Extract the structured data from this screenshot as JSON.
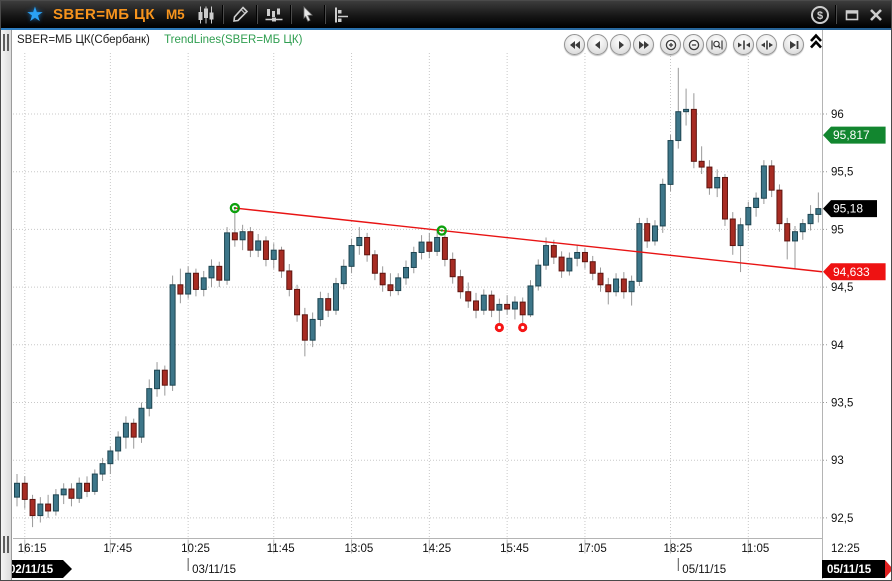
{
  "titlebar": {
    "symbol": "SBER=МБ ЦК",
    "interval": "M5",
    "accent_color": "#f7941d",
    "star_color": "#2ba2f5",
    "money_glyph": "$",
    "tool_icons": [
      "candlestick-style-icon",
      "draw-pencil-icon",
      "indicator-slider-icon",
      "cursor-icon",
      "levels-icon"
    ],
    "window_icons": [
      "money-icon",
      "restore-icon",
      "close-icon"
    ]
  },
  "legend": {
    "main": "SBER=МБ ЦК(Сбербанк)",
    "overlay": "TrendLines(SBER=МБ ЦК)",
    "main_color": "#1c1c1c",
    "overlay_color": "#2f9e50"
  },
  "nav": {
    "buttons": [
      "fast-backward",
      "step-backward",
      "step-forward",
      "fast-forward",
      "zoom-in",
      "zoom-out",
      "zoom-window",
      "squeeze-horizontal",
      "stretch-horizontal",
      "go-to-end"
    ],
    "collapse": "chevron-up"
  },
  "chart_data": {
    "type": "candlestick",
    "symbol": "SBER=МБ ЦК (Сбербанк)",
    "interval": "M5",
    "grid": true,
    "ylim": [
      92.3,
      96.5
    ],
    "up_color": "#3d7689",
    "up_border": "#1e4551",
    "down_color": "#a72c23",
    "down_border": "#5e1510",
    "wick_color": "#999999",
    "price_ticks": [
      {
        "label": "96",
        "price": 96
      },
      {
        "label": "95,5",
        "price": 95.5
      },
      {
        "label": "95",
        "price": 95
      },
      {
        "label": "94,5",
        "price": 94.5
      },
      {
        "label": "94",
        "price": 94
      },
      {
        "label": "93,5",
        "price": 93.5
      },
      {
        "label": "93",
        "price": 93
      },
      {
        "label": "92,5",
        "price": 92.5
      }
    ],
    "time_ticks": [
      {
        "label": "16:15",
        "bar": 1
      },
      {
        "label": "17:45",
        "bar": 12
      },
      {
        "label": "10:25",
        "bar": 22
      },
      {
        "label": "11:45",
        "bar": 33
      },
      {
        "label": "13:05",
        "bar": 43
      },
      {
        "label": "14:25",
        "bar": 53
      },
      {
        "label": "15:45",
        "bar": 63
      },
      {
        "label": "17:05",
        "bar": 73
      },
      {
        "label": "18:25",
        "bar": 84
      },
      {
        "label": "11:05",
        "bar": 94
      },
      {
        "label": "12:25",
        "bar": null,
        "x": 830
      }
    ],
    "date_labels": [
      {
        "label": "03/11/15",
        "bar": 22
      },
      {
        "label": "05/11/15",
        "bar": 85
      }
    ],
    "date_badge_left": "02/11/15",
    "date_badge_right": "05/11/15",
    "badges": [
      {
        "label": "95,817",
        "price": 95.817,
        "bg": "#12862f"
      },
      {
        "label": "95,18",
        "price": 95.18,
        "bg": "#000000"
      },
      {
        "label": "94,633",
        "price": 94.633,
        "bg": "#ee1212"
      }
    ],
    "trendline": {
      "color": "#e81414",
      "anchor_color": "#0da00d",
      "anchors": [
        {
          "bar": 28,
          "price": 95.185
        },
        {
          "bar": 54.6,
          "price": 94.99
        }
      ],
      "end_price": 94.633
    },
    "markers": [
      {
        "bar": 62,
        "price": 94.15,
        "color": "#f51616"
      },
      {
        "bar": 65,
        "price": 94.15,
        "color": "#f51616"
      }
    ],
    "candles": [
      [
        92.68,
        92.88,
        92.6,
        92.8
      ],
      [
        92.8,
        92.86,
        92.58,
        92.66
      ],
      [
        92.66,
        92.7,
        92.42,
        92.52
      ],
      [
        92.52,
        92.68,
        92.46,
        92.62
      ],
      [
        92.62,
        92.7,
        92.5,
        92.56
      ],
      [
        92.56,
        92.75,
        92.52,
        92.7
      ],
      [
        92.7,
        92.8,
        92.62,
        92.75
      ],
      [
        92.75,
        92.8,
        92.6,
        92.67
      ],
      [
        92.67,
        92.85,
        92.63,
        92.8
      ],
      [
        92.8,
        92.86,
        92.68,
        92.73
      ],
      [
        92.73,
        92.92,
        92.7,
        92.88
      ],
      [
        92.88,
        93.02,
        92.82,
        92.97
      ],
      [
        92.97,
        93.12,
        92.88,
        93.08
      ],
      [
        93.08,
        93.25,
        93.0,
        93.2
      ],
      [
        93.2,
        93.38,
        93.1,
        93.32
      ],
      [
        93.32,
        93.36,
        93.1,
        93.2
      ],
      [
        93.2,
        93.5,
        93.15,
        93.45
      ],
      [
        93.45,
        93.7,
        93.38,
        93.62
      ],
      [
        93.62,
        93.85,
        93.55,
        93.78
      ],
      [
        93.78,
        93.82,
        93.56,
        93.65
      ],
      [
        93.65,
        94.6,
        93.6,
        94.52
      ],
      [
        94.52,
        94.66,
        94.36,
        94.44
      ],
      [
        94.44,
        94.68,
        94.4,
        94.62
      ],
      [
        94.62,
        94.66,
        94.42,
        94.48
      ],
      [
        94.48,
        94.64,
        94.42,
        94.58
      ],
      [
        94.58,
        94.74,
        94.5,
        94.68
      ],
      [
        94.68,
        94.72,
        94.5,
        94.56
      ],
      [
        94.56,
        95.02,
        94.52,
        94.97
      ],
      [
        94.97,
        95.18,
        94.85,
        94.91
      ],
      [
        94.91,
        95.04,
        94.82,
        94.98
      ],
      [
        94.98,
        95.02,
        94.76,
        94.82
      ],
      [
        94.82,
        94.96,
        94.76,
        94.9
      ],
      [
        94.9,
        94.94,
        94.68,
        94.74
      ],
      [
        94.74,
        94.88,
        94.66,
        94.82
      ],
      [
        94.82,
        94.85,
        94.58,
        94.64
      ],
      [
        94.64,
        94.7,
        94.42,
        94.48
      ],
      [
        94.48,
        94.52,
        94.2,
        94.26
      ],
      [
        94.26,
        94.32,
        93.9,
        94.04
      ],
      [
        94.04,
        94.28,
        93.98,
        94.22
      ],
      [
        94.22,
        94.46,
        94.16,
        94.4
      ],
      [
        94.4,
        94.45,
        94.24,
        94.3
      ],
      [
        94.3,
        94.58,
        94.26,
        94.53
      ],
      [
        94.53,
        94.74,
        94.48,
        94.68
      ],
      [
        94.68,
        94.92,
        94.62,
        94.86
      ],
      [
        94.86,
        95.02,
        94.78,
        94.93
      ],
      [
        94.93,
        94.97,
        94.72,
        94.78
      ],
      [
        94.78,
        94.82,
        94.56,
        94.62
      ],
      [
        94.62,
        94.68,
        94.46,
        94.52
      ],
      [
        94.52,
        94.62,
        94.42,
        94.47
      ],
      [
        94.47,
        94.62,
        94.43,
        94.58
      ],
      [
        94.58,
        94.73,
        94.52,
        94.67
      ],
      [
        94.67,
        94.85,
        94.62,
        94.8
      ],
      [
        94.8,
        94.95,
        94.74,
        94.89
      ],
      [
        94.89,
        94.97,
        94.75,
        94.81
      ],
      [
        94.81,
        95.0,
        94.77,
        94.93
      ],
      [
        94.93,
        94.97,
        94.68,
        94.74
      ],
      [
        94.74,
        94.8,
        94.53,
        94.59
      ],
      [
        94.59,
        94.65,
        94.4,
        94.46
      ],
      [
        94.46,
        94.54,
        94.32,
        94.38
      ],
      [
        94.38,
        94.45,
        94.23,
        94.3
      ],
      [
        94.3,
        94.48,
        94.26,
        94.43
      ],
      [
        94.43,
        94.47,
        94.24,
        94.3
      ],
      [
        94.3,
        94.4,
        94.19,
        94.35
      ],
      [
        94.35,
        94.43,
        94.26,
        94.31
      ],
      [
        94.31,
        94.42,
        94.22,
        94.37
      ],
      [
        94.37,
        94.41,
        94.18,
        94.26
      ],
      [
        94.26,
        94.56,
        94.24,
        94.51
      ],
      [
        94.51,
        94.74,
        94.47,
        94.69
      ],
      [
        94.69,
        94.93,
        94.65,
        94.86
      ],
      [
        94.86,
        94.91,
        94.7,
        94.76
      ],
      [
        94.76,
        94.81,
        94.58,
        94.64
      ],
      [
        94.64,
        94.8,
        94.6,
        94.75
      ],
      [
        94.75,
        94.86,
        94.68,
        94.8
      ],
      [
        94.8,
        94.84,
        94.66,
        94.72
      ],
      [
        94.72,
        94.77,
        94.56,
        94.62
      ],
      [
        94.62,
        94.67,
        94.46,
        94.52
      ],
      [
        94.52,
        94.58,
        94.35,
        94.46
      ],
      [
        94.46,
        94.62,
        94.42,
        94.57
      ],
      [
        94.57,
        94.63,
        94.4,
        94.46
      ],
      [
        94.46,
        94.6,
        94.34,
        94.55
      ],
      [
        94.55,
        95.1,
        94.51,
        95.05
      ],
      [
        95.05,
        95.1,
        94.84,
        94.9
      ],
      [
        94.9,
        95.08,
        94.86,
        95.03
      ],
      [
        95.03,
        95.44,
        94.97,
        95.39
      ],
      [
        95.39,
        95.82,
        95.33,
        95.77
      ],
      [
        95.77,
        96.4,
        95.7,
        96.02
      ],
      [
        96.02,
        96.22,
        95.9,
        96.04
      ],
      [
        96.04,
        96.18,
        95.53,
        95.59
      ],
      [
        95.59,
        95.72,
        95.48,
        95.54
      ],
      [
        95.54,
        95.6,
        95.3,
        95.36
      ],
      [
        95.36,
        95.52,
        95.28,
        95.45
      ],
      [
        95.45,
        95.48,
        95.03,
        95.09
      ],
      [
        95.09,
        95.15,
        94.78,
        94.86
      ],
      [
        94.86,
        95.1,
        94.63,
        95.04
      ],
      [
        95.04,
        95.24,
        94.99,
        95.19
      ],
      [
        95.19,
        95.32,
        95.11,
        95.27
      ],
      [
        95.27,
        95.6,
        95.22,
        95.55
      ],
      [
        95.55,
        95.6,
        95.28,
        95.34
      ],
      [
        95.34,
        95.39,
        94.98,
        95.05
      ],
      [
        95.05,
        95.1,
        94.74,
        94.9
      ],
      [
        94.9,
        95.03,
        94.66,
        94.98
      ],
      [
        94.98,
        95.09,
        94.91,
        95.05
      ],
      [
        95.05,
        95.21,
        94.99,
        95.13
      ],
      [
        95.13,
        95.32,
        95.06,
        95.18
      ]
    ]
  }
}
